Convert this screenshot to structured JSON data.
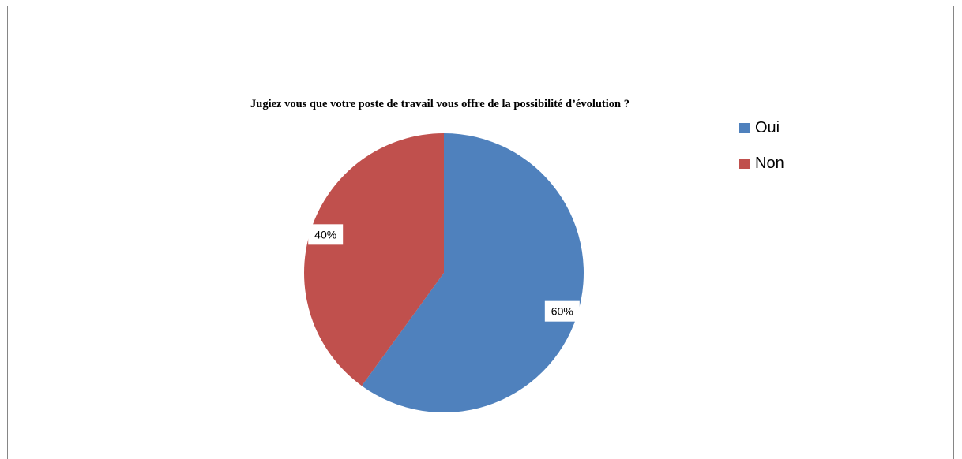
{
  "chart_data": {
    "type": "pie",
    "title": "Jugiez vous que votre poste de travail vous offre de la possibilité d’évolution ?",
    "categories": [
      "Oui",
      "Non"
    ],
    "values": [
      60,
      40
    ],
    "labels": [
      "60%",
      "40%"
    ],
    "colors": [
      "#4f81bd",
      "#c0504d"
    ],
    "legend_position": "top-right"
  }
}
